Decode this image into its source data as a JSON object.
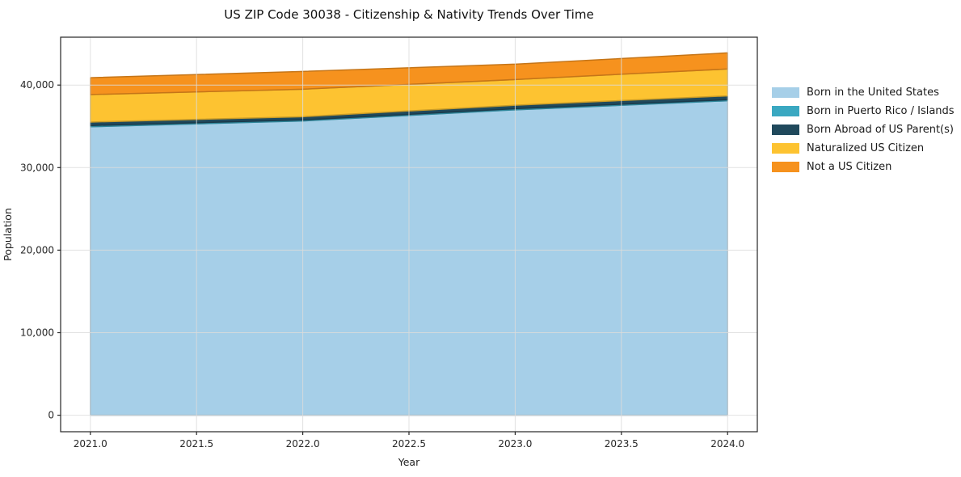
{
  "title": "US ZIP Code 30038 - Citizenship & Nativity Trends Over Time",
  "chart_data": {
    "type": "area",
    "stacked": true,
    "title": "US ZIP Code 30038 - Citizenship & Nativity Trends Over Time",
    "xlabel": "Year",
    "ylabel": "Population",
    "x": [
      2021,
      2022,
      2023,
      2024
    ],
    "series": [
      {
        "name": "Born in the United States",
        "color": "#a6cfe8",
        "values": [
          34950,
          35650,
          37000,
          38100
        ]
      },
      {
        "name": "Born in Puerto Rico / Islands",
        "color": "#3aa8c1",
        "values": [
          150,
          130,
          140,
          130
        ]
      },
      {
        "name": "Born Abroad of US Parent(s)",
        "color": "#20495c",
        "values": [
          420,
          390,
          420,
          460
        ]
      },
      {
        "name": "Naturalized US Citizen",
        "color": "#fdc331",
        "values": [
          3330,
          3330,
          3110,
          3260
        ]
      },
      {
        "name": "Not a US Citizen",
        "color": "#f6921e",
        "values": [
          2040,
          2150,
          1860,
          1950
        ]
      }
    ],
    "xlim": [
      2020.86,
      2024.14
    ],
    "ylim": [
      -2000,
      45800
    ],
    "xticks": [
      {
        "v": 2021.0,
        "label": "2021.0"
      },
      {
        "v": 2021.5,
        "label": "2021.5"
      },
      {
        "v": 2022.0,
        "label": "2022.0"
      },
      {
        "v": 2022.5,
        "label": "2022.5"
      },
      {
        "v": 2023.0,
        "label": "2023.0"
      },
      {
        "v": 2023.5,
        "label": "2023.5"
      },
      {
        "v": 2024.0,
        "label": "2024.0"
      }
    ],
    "yticks": [
      {
        "v": 0,
        "label": "0"
      },
      {
        "v": 10000,
        "label": "10,000"
      },
      {
        "v": 20000,
        "label": "20,000"
      },
      {
        "v": 30000,
        "label": "30,000"
      },
      {
        "v": 40000,
        "label": "40,000"
      }
    ],
    "grid": true,
    "legend_position": "right"
  },
  "colors": {
    "grid": "#dcdcdc",
    "spine": "#262626",
    "tick": "#262626"
  }
}
